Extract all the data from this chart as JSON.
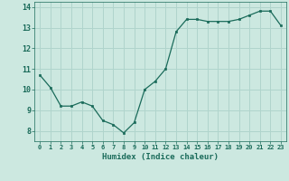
{
  "x": [
    0,
    1,
    2,
    3,
    4,
    5,
    6,
    7,
    8,
    9,
    10,
    11,
    12,
    13,
    14,
    15,
    16,
    17,
    18,
    19,
    20,
    21,
    22,
    23
  ],
  "y": [
    10.7,
    10.1,
    9.2,
    9.2,
    9.4,
    9.2,
    8.5,
    8.3,
    7.9,
    8.4,
    10.0,
    10.4,
    11.0,
    12.8,
    13.4,
    13.4,
    13.3,
    13.3,
    13.3,
    13.4,
    13.6,
    13.8,
    13.8,
    13.1
  ],
  "xlabel": "Humidex (Indice chaleur)",
  "xlim": [
    -0.5,
    23.5
  ],
  "ylim": [
    7.5,
    14.25
  ],
  "yticks": [
    8,
    9,
    10,
    11,
    12,
    13,
    14
  ],
  "xtick_labels": [
    "0",
    "1",
    "2",
    "3",
    "4",
    "5",
    "6",
    "7",
    "8",
    "9",
    "10",
    "11",
    "12",
    "13",
    "14",
    "15",
    "16",
    "17",
    "18",
    "19",
    "20",
    "21",
    "22",
    "23"
  ],
  "bg_color": "#cce8e0",
  "grid_color": "#b0d4cc",
  "line_color": "#1a6b5a",
  "marker_color": "#1a6b5a",
  "label_color": "#1a6b5a",
  "tick_color": "#1a6b5a"
}
